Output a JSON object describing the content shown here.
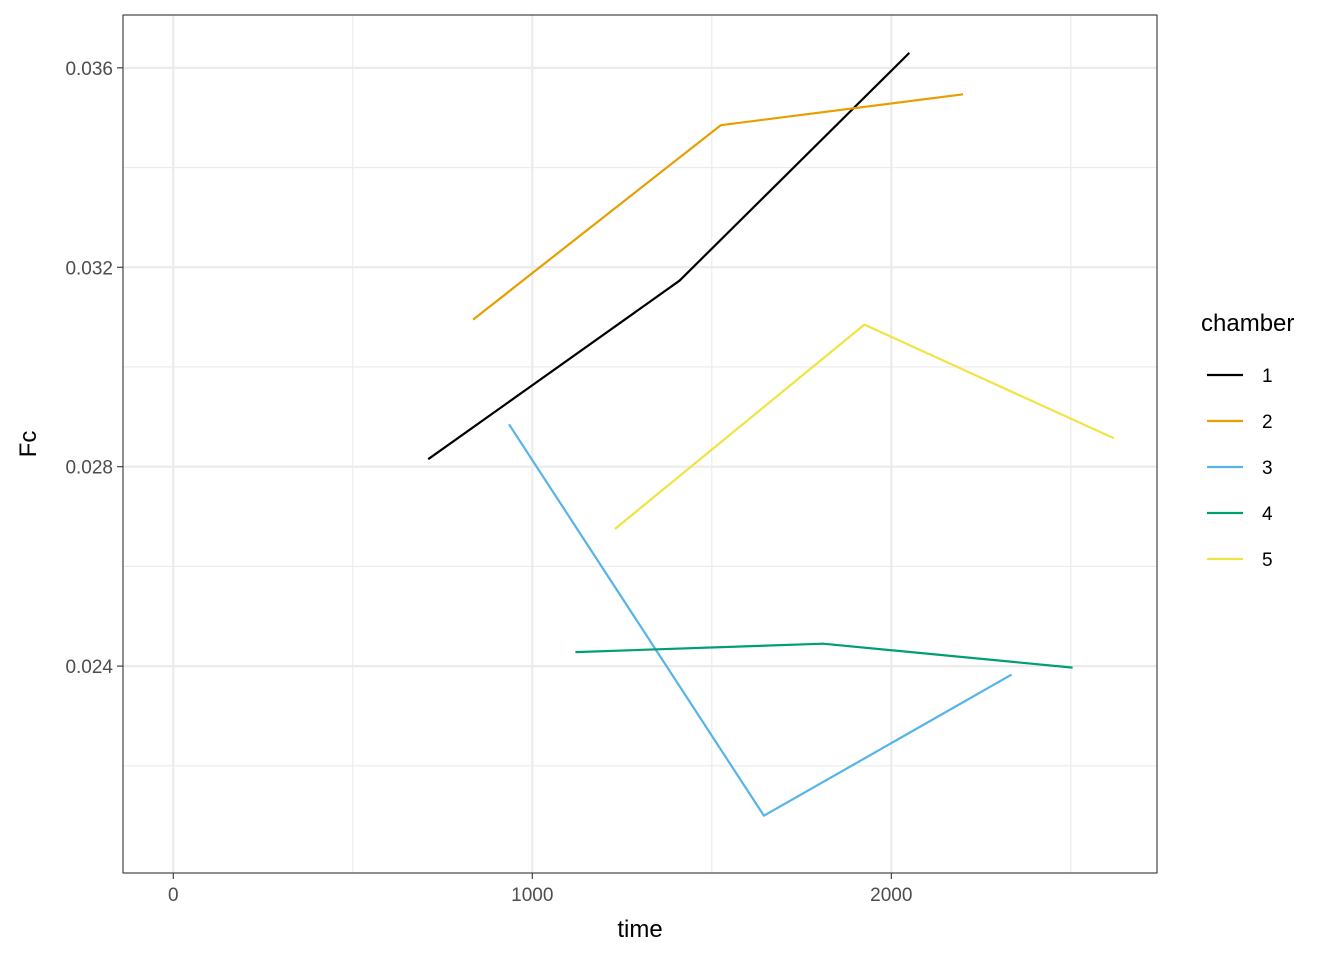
{
  "chart_data": {
    "type": "line",
    "xlabel": "time",
    "ylabel": "Fc",
    "xlim": [
      -140,
      2740
    ],
    "ylim": [
      0.01985,
      0.03706
    ],
    "x_ticks": [
      0,
      1000,
      2000
    ],
    "x_tick_labels": [
      "0",
      "1000",
      "2000"
    ],
    "x_minor_ticks": [
      500,
      1500,
      2500
    ],
    "y_ticks": [
      0.024,
      0.028,
      0.032,
      0.036
    ],
    "y_tick_labels": [
      "0.024",
      "0.028",
      "0.032",
      "0.036"
    ],
    "y_minor_ticks": [
      0.022,
      0.026,
      0.03,
      0.034
    ],
    "grid": true,
    "legend": {
      "title": "chamber",
      "position": "right"
    },
    "series": [
      {
        "name": "1",
        "color": "#000000",
        "x": [
          710,
          1410,
          2050
        ],
        "y": [
          0.02815,
          0.03173,
          0.0363
        ]
      },
      {
        "name": "2",
        "color": "#E69F00",
        "x": [
          835,
          1525,
          2200
        ],
        "y": [
          0.03095,
          0.03485,
          0.03547
        ]
      },
      {
        "name": "3",
        "color": "#56B4E9",
        "x": [
          935,
          1645,
          2335
        ],
        "y": [
          0.02885,
          0.021,
          0.02383
        ]
      },
      {
        "name": "4",
        "color": "#009E73",
        "x": [
          1120,
          1810,
          2505
        ],
        "y": [
          0.02428,
          0.02445,
          0.02397
        ]
      },
      {
        "name": "5",
        "color": "#F0E442",
        "x": [
          1230,
          1925,
          2620
        ],
        "y": [
          0.02675,
          0.03085,
          0.02857
        ]
      }
    ]
  }
}
